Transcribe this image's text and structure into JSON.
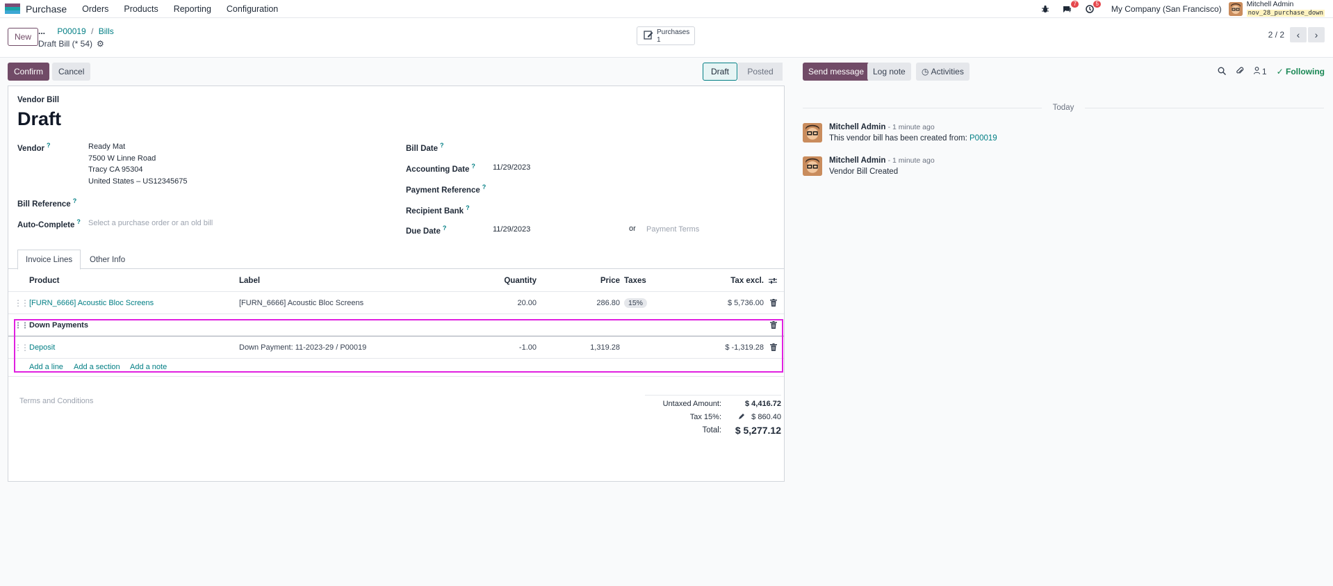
{
  "navbar": {
    "app_name": "Purchase",
    "menu": [
      "Orders",
      "Products",
      "Reporting",
      "Configuration"
    ],
    "messages_count": "7",
    "activities_count": "5",
    "company": "My Company (San Francisco)",
    "user_name": "Mitchell Admin",
    "db_name": "nov_28_purchase_down",
    "icons": [
      "bug-icon",
      "chat-icon",
      "clock-icon"
    ]
  },
  "control": {
    "new_label": "New",
    "breadcrumb_dots": "...",
    "breadcrumb": [
      "P00019",
      "Bills"
    ],
    "record_name": "Draft Bill (* 54)",
    "smart_button": {
      "label": "Purchases",
      "count": "1"
    },
    "pager": "2 / 2"
  },
  "status": {
    "confirm_label": "Confirm",
    "cancel_label": "Cancel",
    "stages": [
      "Draft",
      "Posted"
    ],
    "current_stage": "Draft"
  },
  "form": {
    "subtitle": "Vendor Bill",
    "title": "Draft",
    "vendor_label": "Vendor",
    "vendor_name": "Ready Mat",
    "vendor_address": [
      "7500 W Linne Road",
      "Tracy CA 95304",
      "United States – US12345675"
    ],
    "bill_reference_label": "Bill Reference",
    "auto_complete_label": "Auto-Complete",
    "auto_complete_placeholder": "Select a purchase order or an old bill",
    "bill_date_label": "Bill Date",
    "accounting_date_label": "Accounting Date",
    "accounting_date": "11/29/2023",
    "payment_reference_label": "Payment Reference",
    "recipient_bank_label": "Recipient Bank",
    "due_date_label": "Due Date",
    "due_date": "11/29/2023",
    "or_label": "or",
    "payment_terms_placeholder": "Payment Terms",
    "help_mark": "?"
  },
  "tabs": [
    "Invoice Lines",
    "Other Info"
  ],
  "table": {
    "headers": {
      "product": "Product",
      "label": "Label",
      "quantity": "Quantity",
      "price": "Price",
      "taxes": "Taxes",
      "tax_excl": "Tax excl."
    },
    "rows": [
      {
        "product": "[FURN_6666] Acoustic Bloc Screens",
        "label": "[FURN_6666] Acoustic Bloc Screens",
        "quantity": "20.00",
        "price": "286.80",
        "taxes": "15%",
        "total": "$ 5,736.00"
      }
    ],
    "section": "Down Payments",
    "down_payment_row": {
      "product": "Deposit",
      "label": "Down Payment: 11-2023-29 / P00019",
      "quantity": "-1.00",
      "price": "1,319.28",
      "total": "$ -1,319.28"
    },
    "add_line": "Add a line",
    "add_section": "Add a section",
    "add_note": "Add a note"
  },
  "totals": {
    "terms_placeholder": "Terms and Conditions",
    "untaxed_label": "Untaxed Amount:",
    "untaxed_value": "$ 4,416.72",
    "tax_label": "Tax 15%:",
    "tax_value": "$ 860.40",
    "total_label": "Total:",
    "total_value": "$ 5,277.12"
  },
  "chatter": {
    "send_message": "Send message",
    "log_note": "Log note",
    "activities": "Activities",
    "followers_count": "1",
    "following": "Following",
    "date_separator": "Today",
    "messages": [
      {
        "author": "Mitchell Admin",
        "time": "- 1 minute ago",
        "body": "This vendor bill has been created from: ",
        "link": "P00019"
      },
      {
        "author": "Mitchell Admin",
        "time": "- 1 minute ago",
        "body": "Vendor Bill Created"
      }
    ]
  },
  "colors": {
    "brand": "#714b67",
    "link": "#017e84",
    "following": "#198754",
    "highlight": "#e020e0"
  }
}
